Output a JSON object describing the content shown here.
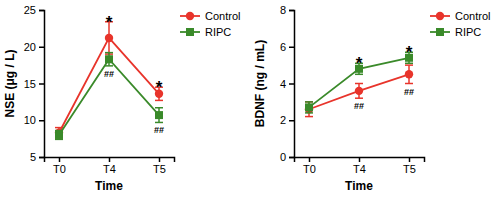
{
  "chart_data": [
    {
      "type": "line",
      "y_label": "NSE (μg / L)",
      "x_label": "Time",
      "categories": [
        "T0",
        "T4",
        "T5"
      ],
      "series": [
        {
          "name": "Control",
          "color": "#e8342b",
          "marker": "circle",
          "values": [
            8.3,
            21.2,
            13.6
          ],
          "errors": [
            0.7,
            2.2,
            0.9
          ]
        },
        {
          "name": "RIPC",
          "color": "#3a8a2a",
          "marker": "square",
          "values": [
            8.0,
            18.3,
            10.7
          ],
          "errors": [
            0.6,
            0.9,
            1.0
          ]
        }
      ],
      "ylim": [
        5,
        25
      ],
      "yticks": [
        5,
        10,
        15,
        20,
        25
      ],
      "legend": "upper right",
      "annotations": [
        {
          "text": "*",
          "x": "T4"
        },
        {
          "text": "*",
          "x": "T5"
        },
        {
          "text": "##",
          "x": "T4",
          "series": "RIPC"
        },
        {
          "text": "##",
          "x": "T5",
          "series": "RIPC"
        }
      ]
    },
    {
      "type": "line",
      "y_label": "BDNF (ng / mL)",
      "x_label": "Time",
      "categories": [
        "T0",
        "T4",
        "T5"
      ],
      "series": [
        {
          "name": "Control",
          "color": "#e8342b",
          "marker": "circle",
          "values": [
            2.6,
            3.6,
            4.5
          ],
          "errors": [
            0.4,
            0.4,
            0.5
          ]
        },
        {
          "name": "RIPC",
          "color": "#3a8a2a",
          "marker": "square",
          "values": [
            2.7,
            4.8,
            5.4
          ],
          "errors": [
            0.3,
            0.3,
            0.3
          ]
        }
      ],
      "ylim": [
        0,
        8
      ],
      "yticks": [
        0,
        2,
        4,
        6,
        8
      ],
      "legend": "upper right",
      "annotations": [
        {
          "text": "*",
          "x": "T4"
        },
        {
          "text": "*",
          "x": "T5"
        },
        {
          "text": "##",
          "x": "T4",
          "series": "Control"
        },
        {
          "text": "##",
          "x": "T5",
          "series": "Control"
        }
      ]
    }
  ]
}
